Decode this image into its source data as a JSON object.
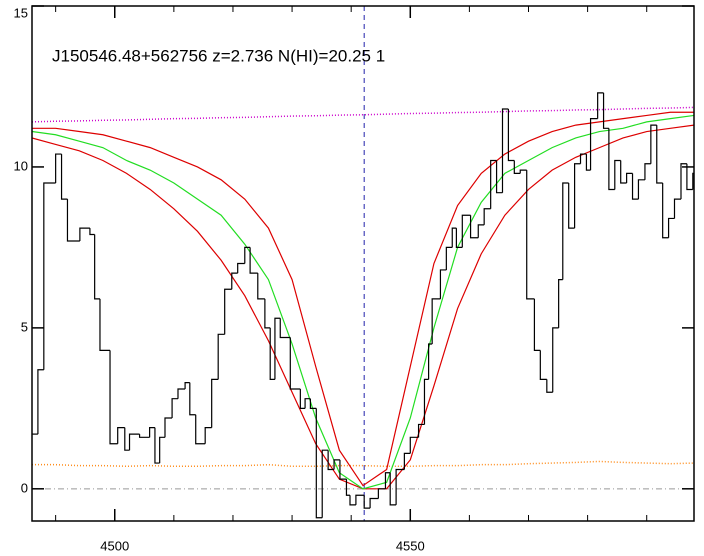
{
  "chart_data": {
    "type": "spectrum",
    "title": "J150546.48+562756 z=2.736 N(HI)=20.25 1",
    "xlim": [
      4486,
      4598
    ],
    "ylim": [
      -1,
      15
    ],
    "xticks": [
      4500,
      4550
    ],
    "xminor_ticks": [
      4490,
      4510,
      4520,
      4530,
      4540,
      4560,
      4570,
      4580,
      4590
    ],
    "yticks": [
      0,
      5,
      10,
      15
    ],
    "hline": 0,
    "vline": 4542.2,
    "flux": {
      "color": "#000000",
      "x": [
        4485.9,
        4487.0,
        4488.0,
        4490.0,
        4491.0,
        4492.0,
        4494.1,
        4495.8,
        4496.6,
        4497.5,
        4499.2,
        4500.5,
        4501.7,
        4502.5,
        4504.2,
        4505.9,
        4506.8,
        4507.6,
        4508.5,
        4509.7,
        4510.7,
        4511.9,
        4512.7,
        4513.7,
        4515.3,
        4516.4,
        4517.5,
        4518.6,
        4519.8,
        4520.8,
        4522.0,
        4522.9,
        4524.2,
        4525.4,
        4526.3,
        4527.1,
        4528.0,
        4529.7,
        4531.4,
        4532.2,
        4533.1,
        4534.1,
        4535.1,
        4536.1,
        4537.1,
        4538.1,
        4539.2,
        4539.8,
        4540.8,
        4542.2,
        4543.2,
        4544.6,
        4545.8,
        4546.6,
        4547.6,
        4549.0,
        4550.0,
        4551.4,
        4552.4,
        4553.1,
        4553.7,
        4555.1,
        4556.1,
        4557.1,
        4557.8,
        4558.8,
        4560.2,
        4561.5,
        4562.5,
        4563.6,
        4564.6,
        4565.6,
        4566.6,
        4567.6,
        4568.6,
        4569.7,
        4571.0,
        4572.0,
        4573.1,
        4574.1,
        4575.1,
        4575.8,
        4576.8,
        4577.8,
        4578.8,
        4579.8,
        4580.5,
        4581.7,
        4582.7,
        4583.6,
        4584.6,
        4585.6,
        4586.6,
        4587.6,
        4588.6,
        4589.7,
        4590.7,
        4591.7,
        4592.7,
        4593.7,
        4594.7,
        4595.8,
        4596.8,
        4597.8
      ],
      "values": [
        1.7,
        3.7,
        9.5,
        10.4,
        9.0,
        7.7,
        8.1,
        7.9,
        5.9,
        4.3,
        1.4,
        1.9,
        1.2,
        1.7,
        1.6,
        1.9,
        0.8,
        1.6,
        2.2,
        2.8,
        3.1,
        3.3,
        2.3,
        1.4,
        1.9,
        3.4,
        4.8,
        6.2,
        6.7,
        7.0,
        7.5,
        6.7,
        5.9,
        5.0,
        3.4,
        5.3,
        4.7,
        3.1,
        2.5,
        2.8,
        2.5,
        -0.9,
        1.2,
        0.6,
        0.9,
        0.3,
        -0.2,
        -0.5,
        -0.2,
        -0.6,
        -0.3,
        0.0,
        0.5,
        -0.5,
        0.6,
        1.1,
        1.6,
        2.0,
        3.4,
        4.5,
        5.9,
        6.8,
        7.5,
        8.1,
        7.5,
        8.5,
        7.8,
        8.2,
        8.7,
        10.2,
        9.2,
        11.8,
        10.2,
        9.8,
        9.9,
        5.9,
        4.3,
        3.4,
        3.0,
        5.0,
        6.5,
        9.5,
        8.1,
        10.1,
        10.4,
        9.9,
        11.5,
        12.3,
        11.2,
        9.3,
        10.2,
        9.5,
        9.8,
        9.0,
        9.6,
        10.1,
        11.3,
        9.5,
        7.8,
        8.4,
        9.0,
        10.1,
        9.3,
        9.8
      ]
    },
    "model_x": [
      4486,
      4490,
      4494,
      4498,
      4502,
      4506,
      4510,
      4514,
      4518,
      4522,
      4526,
      4530,
      4534,
      4538,
      4542,
      4546,
      4550,
      4554,
      4558,
      4562,
      4566,
      4570,
      4574,
      4578,
      4582,
      4586,
      4590,
      4594,
      4598
    ],
    "series": [
      {
        "color": "#cc00cc",
        "style": "dotted",
        "values": [
          11.4,
          11.42,
          11.43,
          11.45,
          11.46,
          11.48,
          11.5,
          11.51,
          11.53,
          11.54,
          11.56,
          11.58,
          11.59,
          11.61,
          11.62,
          11.64,
          11.66,
          11.67,
          11.69,
          11.7,
          11.72,
          11.74,
          11.75,
          11.77,
          11.78,
          11.8,
          11.82,
          11.83,
          11.85
        ]
      },
      {
        "color": "#ff8c1a",
        "style": "dotted",
        "values": [
          0.75,
          0.75,
          0.72,
          0.72,
          0.7,
          0.72,
          0.7,
          0.7,
          0.72,
          0.72,
          0.75,
          0.7,
          0.7,
          0.72,
          0.72,
          0.7,
          0.7,
          0.72,
          0.72,
          0.75,
          0.75,
          0.78,
          0.8,
          0.82,
          0.85,
          0.82,
          0.8,
          0.78,
          0.8
        ]
      },
      {
        "color": "#dd0000",
        "style": "solid",
        "values": [
          11.2,
          11.2,
          11.1,
          11.0,
          10.8,
          10.6,
          10.3,
          10.0,
          9.6,
          9.0,
          8.1,
          6.5,
          3.8,
          1.2,
          0.1,
          0.6,
          3.8,
          7.0,
          8.8,
          9.8,
          10.4,
          10.8,
          11.1,
          11.3,
          11.4,
          11.5,
          11.6,
          11.7,
          11.7
        ]
      },
      {
        "color": "#dd0000",
        "style": "solid",
        "values": [
          10.9,
          10.7,
          10.5,
          10.2,
          9.8,
          9.3,
          8.7,
          8.0,
          7.1,
          6.0,
          4.6,
          3.0,
          1.4,
          0.3,
          0.0,
          0.0,
          0.9,
          3.2,
          5.6,
          7.3,
          8.5,
          9.3,
          9.9,
          10.3,
          10.6,
          10.9,
          11.1,
          11.2,
          11.3
        ]
      },
      {
        "color": "#22dd22",
        "style": "solid",
        "values": [
          11.1,
          11.0,
          10.8,
          10.6,
          10.2,
          9.9,
          9.5,
          9.0,
          8.5,
          7.6,
          6.5,
          4.5,
          2.2,
          0.5,
          0.0,
          0.2,
          2.2,
          5.0,
          7.5,
          8.9,
          9.8,
          10.2,
          10.6,
          10.9,
          11.1,
          11.2,
          11.4,
          11.5,
          11.6
        ]
      }
    ]
  }
}
